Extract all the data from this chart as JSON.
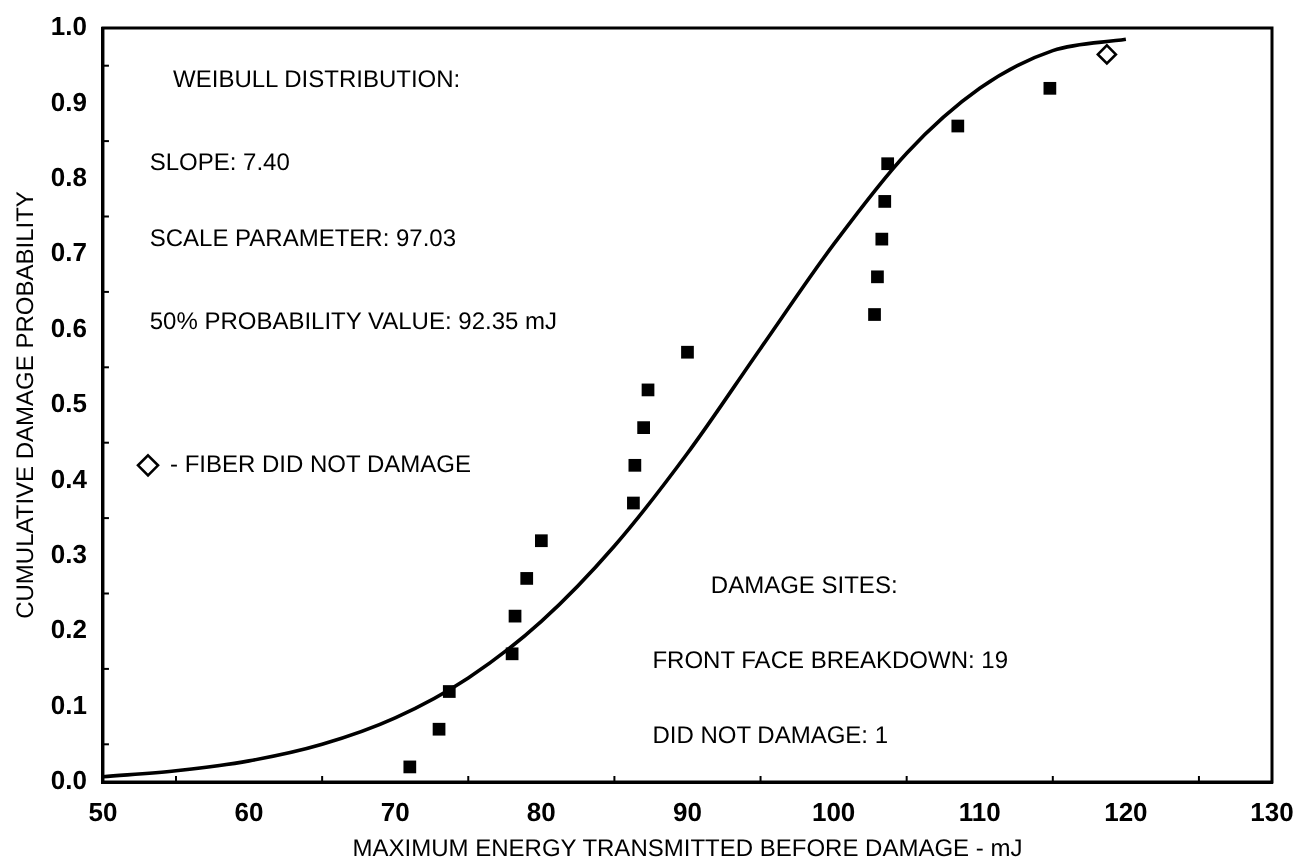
{
  "chart_data": {
    "type": "scatter",
    "xlabel": "MAXIMUM ENERGY TRANSMITTED BEFORE DAMAGE - mJ",
    "ylabel": "CUMULATIVE DAMAGE PROBABILITY",
    "xlim": [
      50,
      130
    ],
    "xticks": [
      50,
      60,
      70,
      80,
      90,
      100,
      110,
      120,
      130
    ],
    "ylim": [
      0,
      1
    ],
    "yticks": [
      {
        "value": 0,
        "label": "0.0"
      },
      {
        "value": 0.1,
        "label": "0.1"
      },
      {
        "value": 0.2,
        "label": "0.2"
      },
      {
        "value": 0.3,
        "label": "0.3"
      },
      {
        "value": 0.4,
        "label": "0.4"
      },
      {
        "value": 0.5,
        "label": "0.5"
      },
      {
        "value": 0.6,
        "label": "0.6"
      },
      {
        "value": 0.7,
        "label": "0.7"
      },
      {
        "value": 0.8,
        "label": "0.8"
      },
      {
        "value": 0.9,
        "label": "0.9"
      },
      {
        "value": 1,
        "label": "1.0"
      }
    ],
    "grid": false,
    "legend": "left",
    "series": [
      {
        "type": "line",
        "color": "#000000",
        "marker": "none",
        "x": [
          50,
          55,
          60,
          65,
          70,
          75,
          80,
          85,
          90,
          95,
          100,
          105,
          110,
          115,
          120
        ],
        "values": [
          0.007,
          0.015,
          0.028,
          0.05,
          0.085,
          0.138,
          0.213,
          0.313,
          0.436,
          0.575,
          0.713,
          0.834,
          0.92,
          0.97,
          0.985
        ]
      },
      {
        "type": "scatter",
        "color": "#000000",
        "marker": "square",
        "x": [
          71,
          73,
          73.7,
          78,
          78.2,
          79,
          80,
          86.3,
          86.4,
          87,
          87.3,
          90,
          102.8,
          103,
          103.3,
          103.5,
          103.7,
          108.5,
          114.8
        ],
        "values": [
          0.02,
          0.07,
          0.12,
          0.17,
          0.22,
          0.27,
          0.32,
          0.37,
          0.42,
          0.47,
          0.52,
          0.57,
          0.62,
          0.67,
          0.72,
          0.77,
          0.82,
          0.87,
          0.92
        ]
      },
      {
        "type": "scatter",
        "name": "- FIBER DID NOT DAMAGE",
        "color": "#000000",
        "marker": "diamond",
        "x": [
          118.7
        ],
        "values": [
          0.965
        ]
      }
    ],
    "annotations": [
      "WEIBULL DISTRIBUTION:",
      "SLOPE: 7.40",
      "SCALE PARAMETER: 97.03",
      "50% PROBABILITY VALUE: 92.35 mJ",
      "DAMAGE SITES:",
      "FRONT FACE BREAKDOWN: 19",
      "DID NOT DAMAGE: 1"
    ]
  }
}
